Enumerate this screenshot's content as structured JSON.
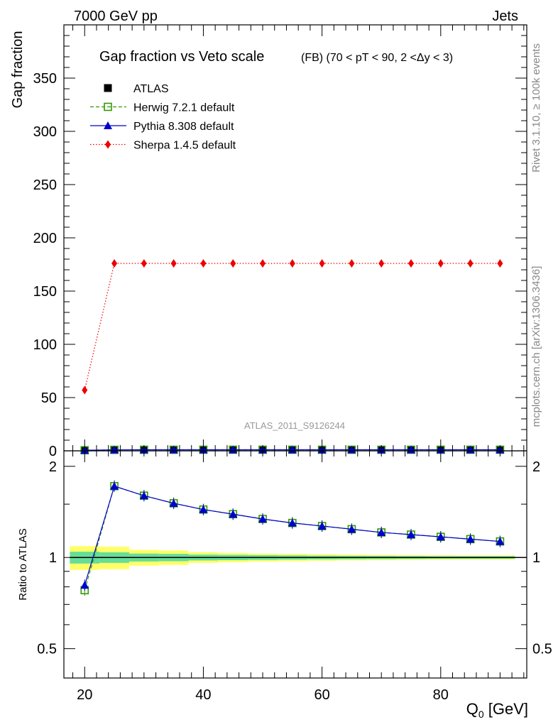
{
  "header": {
    "left": "7000 GeV pp",
    "right": "Jets"
  },
  "side": {
    "rivet": "Rivet 3.1.10, ≥ 100k events",
    "mcplots": "mcplots.cern.ch [arXiv:1306.3436]"
  },
  "colors": {
    "atlas": "#000000",
    "herwig": "#339900",
    "pythia": "#0000cc",
    "sherpa": "#ee0000",
    "band_inner": "#66dd99",
    "band_outer": "#ffff66"
  },
  "chart_data": [
    {
      "type": "line",
      "title": "Gap fraction vs Veto scale",
      "subtitle": "(FB) (70 < pT <  90, 2 <Δy < 3)",
      "ylabel": "Gap fraction",
      "watermark": "ATLAS_2011_S9126244",
      "xlim": [
        16.5,
        94.5
      ],
      "ylim": [
        0,
        400
      ],
      "yticks": [
        0,
        50,
        100,
        150,
        200,
        250,
        300,
        350
      ],
      "legend_position": "top-left",
      "x": [
        20,
        25,
        30,
        35,
        40,
        45,
        50,
        55,
        60,
        65,
        70,
        75,
        80,
        85,
        90
      ],
      "series": [
        {
          "name": "ATLAS",
          "marker": "square",
          "values": [
            0.7,
            0.55,
            0.6,
            0.65,
            0.7,
            0.72,
            0.75,
            0.77,
            0.79,
            0.81,
            0.83,
            0.84,
            0.86,
            0.87,
            0.89
          ]
        },
        {
          "name": "Herwig 7.2.1 default",
          "marker": "open-square",
          "values": [
            0.55,
            0.95,
            1.0,
            1.0,
            1.02,
            1.02,
            1.02,
            1.02,
            1.02,
            1.02,
            1.02,
            1.02,
            1.02,
            1.02,
            1.02
          ]
        },
        {
          "name": "Pythia 8.308 default",
          "marker": "triangle",
          "values": [
            0.57,
            0.95,
            1.0,
            1.0,
            1.02,
            1.02,
            1.02,
            1.02,
            1.02,
            1.02,
            1.02,
            1.02,
            1.02,
            1.02,
            1.02
          ]
        },
        {
          "name": "Sherpa 1.4.5 default",
          "marker": "diamond",
          "values": [
            57,
            176,
            176,
            176,
            176,
            176,
            176,
            176,
            176,
            176,
            176,
            176,
            176,
            176,
            176
          ]
        }
      ]
    },
    {
      "type": "line",
      "ylabel": "Ratio to ATLAS",
      "xlabel": "Q",
      "xlabel_sub": "0",
      "xlabel_unit": " [GeV]",
      "xlim": [
        16.5,
        94.5
      ],
      "ylim": [
        0.4,
        2.25
      ],
      "yscale": "log",
      "yticks": [
        0.5,
        1,
        2
      ],
      "xticks": [
        20,
        40,
        60,
        80
      ],
      "x": [
        20,
        25,
        30,
        35,
        40,
        45,
        50,
        55,
        60,
        65,
        70,
        75,
        80,
        85,
        90
      ],
      "band_edges": [
        17.5,
        22.5,
        27.5,
        32.5,
        37.5,
        42.5,
        47.5,
        52.5,
        57.5,
        62.5,
        67.5,
        72.5,
        77.5,
        82.5,
        87.5,
        92.5
      ],
      "band_inner": [
        0.045,
        0.04,
        0.03,
        0.028,
        0.022,
        0.02,
        0.018,
        0.016,
        0.014,
        0.013,
        0.012,
        0.011,
        0.01,
        0.01,
        0.01
      ],
      "band_outer": [
        0.09,
        0.085,
        0.06,
        0.055,
        0.04,
        0.035,
        0.03,
        0.028,
        0.025,
        0.022,
        0.02,
        0.018,
        0.017,
        0.016,
        0.016
      ],
      "series": [
        {
          "name": "Herwig 7.2.1 default",
          "values": [
            0.78,
            1.72,
            1.6,
            1.51,
            1.44,
            1.39,
            1.34,
            1.3,
            1.27,
            1.24,
            1.21,
            1.19,
            1.17,
            1.15,
            1.13
          ]
        },
        {
          "name": "Pythia 8.308 default",
          "values": [
            0.81,
            1.72,
            1.6,
            1.51,
            1.44,
            1.39,
            1.34,
            1.3,
            1.27,
            1.24,
            1.21,
            1.19,
            1.17,
            1.15,
            1.13
          ]
        }
      ]
    }
  ]
}
